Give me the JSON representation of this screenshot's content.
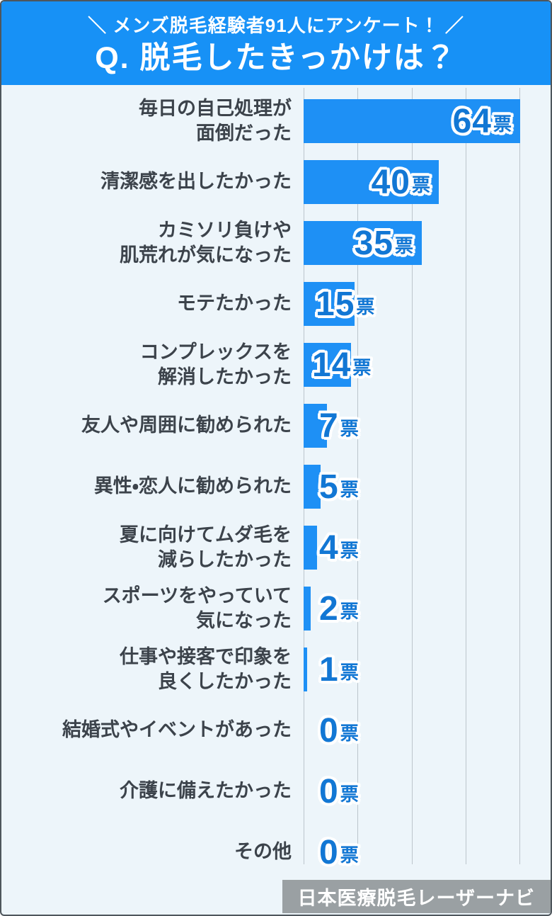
{
  "header": {
    "tagline": "＼ メンズ脱毛経験者91人にアンケート！ ／",
    "title": "Q. 脱毛したきっかけは？"
  },
  "chart_data": {
    "type": "bar",
    "orientation": "horizontal",
    "title": "Q. 脱毛したきっかけは？",
    "subtitle": "メンズ脱毛経験者91人にアンケート！",
    "unit": "票",
    "categories": [
      "毎日の自己処理が\n面倒だった",
      "清潔感を出したかった",
      "カミソリ負けや\n肌荒れが気になった",
      "モテたかった",
      "コンプレックスを\n解消したかった",
      "友人や周囲に勧められた",
      "異性・恋人に勧められた",
      "夏に向けてムダ毛を\n減らしたかった",
      "スポーツをやっていて\n気になった",
      "仕事や接客で印象を\n良くしたかった",
      "結婚式やイベントがあった",
      "介護に備えたかった",
      "その他"
    ],
    "values": [
      64,
      40,
      35,
      15,
      14,
      7,
      5,
      4,
      2,
      1,
      0,
      0,
      0
    ],
    "xlim": [
      0,
      64
    ],
    "gridline_positions_pct": [
      0,
      25,
      50,
      75,
      100
    ],
    "grid": true,
    "legend": "none"
  },
  "footer": {
    "source": "日本医療脱毛レーザーナビ"
  },
  "colors": {
    "header_bg": "#1791f6",
    "bar": "#1e90f5",
    "value_text": "#1277d4",
    "label_text": "#3c434b",
    "background": "#edf5fa",
    "gridline": "#bcc5cc",
    "footer_bg": "#9aa0a3",
    "footer_text": "#ffffff"
  }
}
